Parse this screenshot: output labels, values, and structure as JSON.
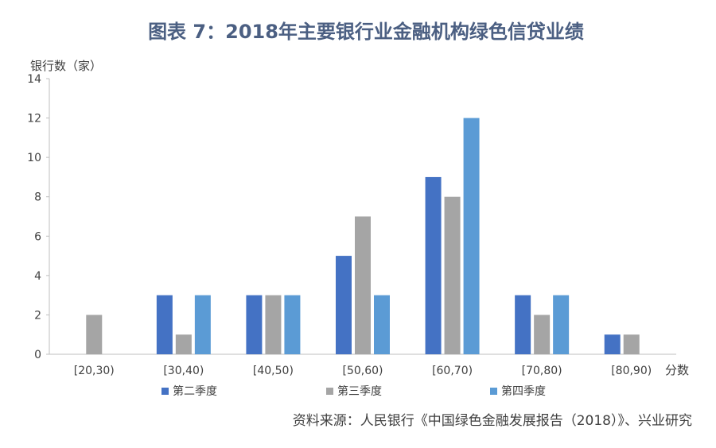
{
  "chart_data": {
    "type": "bar",
    "title": "图表 7：2018年主要银行业金融机构绿色信贷业绩",
    "ylabel": "银行数（家）",
    "xlabel": "分数",
    "categories": [
      "[20,30)",
      "[30,40)",
      "[40,50)",
      "[50,60)",
      "[60,70)",
      "[70,80)",
      "[80,90)"
    ],
    "series": [
      {
        "name": "第二季度",
        "values": [
          0,
          3,
          3,
          5,
          9,
          3,
          1
        ],
        "color": "#4472c4"
      },
      {
        "name": "第三季度",
        "values": [
          2,
          1,
          3,
          7,
          8,
          2,
          1
        ],
        "color": "#a5a5a5"
      },
      {
        "name": "第四季度",
        "values": [
          0,
          3,
          3,
          3,
          12,
          3,
          0
        ],
        "color": "#5b9bd5"
      }
    ],
    "ylim": [
      0,
      14
    ],
    "yticks": [
      0,
      2,
      4,
      6,
      8,
      10,
      12,
      14
    ],
    "grid": false,
    "legend_position": "bottom",
    "source": "资料来源：人民银行《中国绿色金融发展报告（2018）》、兴业研究"
  },
  "colors": {
    "title": "#4b5f82",
    "axis": "#bfbfbf",
    "text": "#404040"
  }
}
